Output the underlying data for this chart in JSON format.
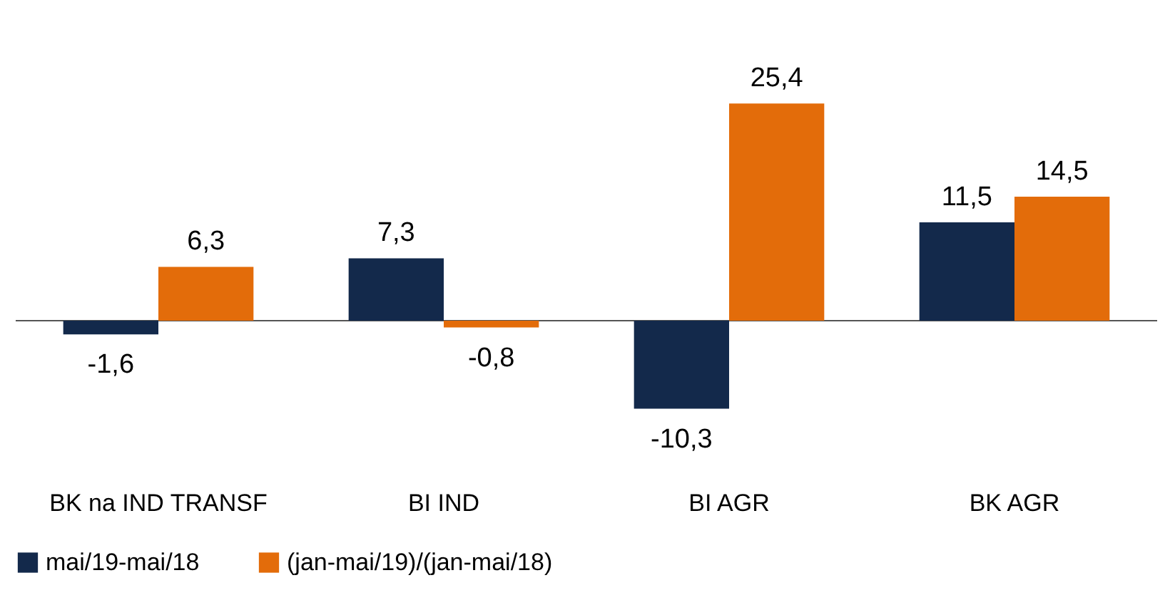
{
  "chart_data": {
    "type": "bar",
    "categories": [
      "BK na IND TRANSF",
      "BI IND",
      "BI AGR",
      "BK AGR"
    ],
    "series": [
      {
        "name": "mai/19-mai/18",
        "color": "#13294b",
        "values": [
          -1.6,
          7.3,
          -10.3,
          11.5
        ],
        "value_labels": [
          "-1,6",
          "7,3",
          "-10,3",
          "11,5"
        ]
      },
      {
        "name": "(jan-mai/19)/(jan-mai/18)",
        "color": "#e36c0a",
        "values": [
          6.3,
          -0.8,
          25.4,
          14.5
        ],
        "value_labels": [
          "6,3",
          "-0,8",
          "25,4",
          "14,5"
        ]
      }
    ],
    "legend": "bottom"
  }
}
